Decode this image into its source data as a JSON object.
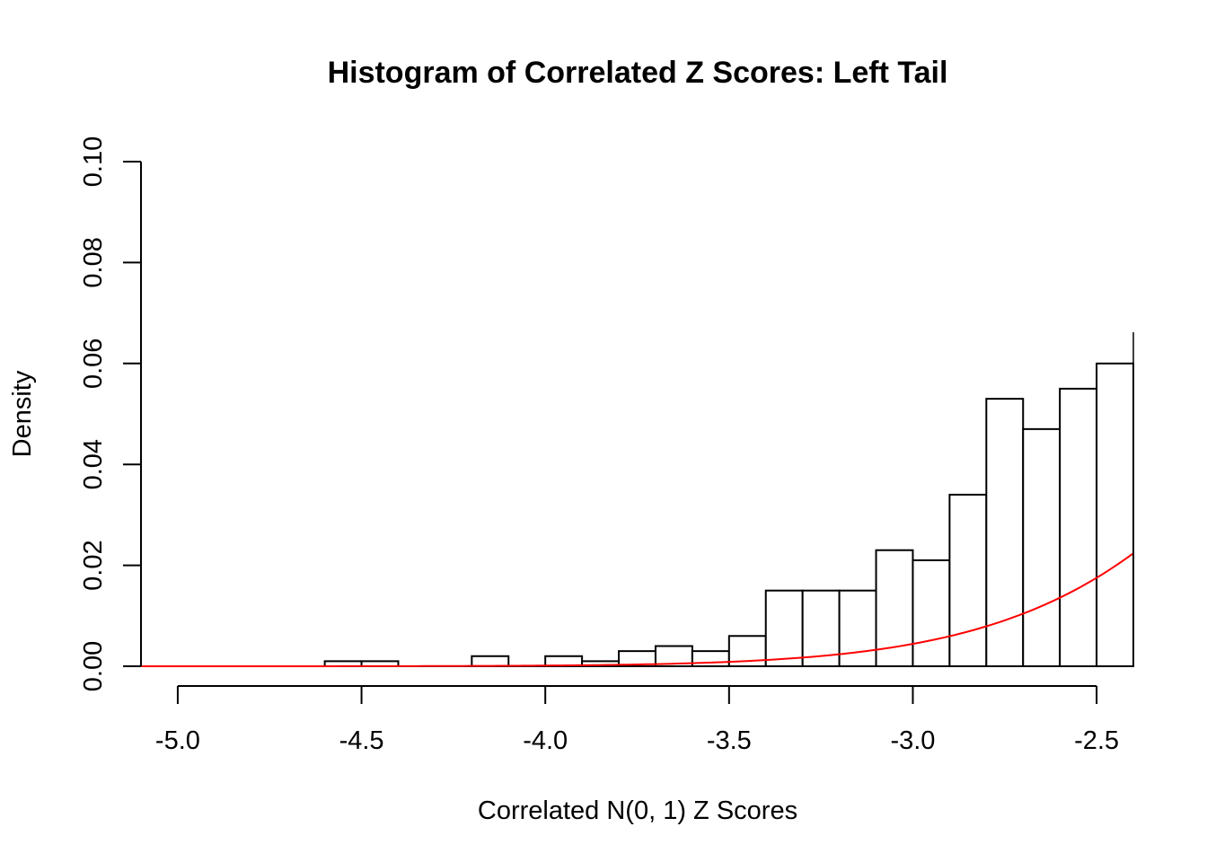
{
  "chart_data": {
    "type": "bar",
    "title": "Histogram of Correlated Z Scores: Left Tail",
    "xlabel": "Correlated N(0, 1) Z Scores",
    "ylabel": "Density",
    "xlim": [
      -5.1,
      -2.4
    ],
    "ylim": [
      0,
      0.1
    ],
    "x_ticks": [
      -5.0,
      -4.5,
      -4.0,
      -3.5,
      -3.0,
      -2.5
    ],
    "x_tick_labels": [
      "-5.0",
      "-4.5",
      "-4.0",
      "-3.5",
      "-3.0",
      "-2.5"
    ],
    "y_ticks": [
      0.0,
      0.02,
      0.04,
      0.06,
      0.08,
      0.1
    ],
    "y_tick_labels": [
      "0.00",
      "0.02",
      "0.04",
      "0.06",
      "0.08",
      "0.10"
    ],
    "bar_color": "#ffffff",
    "bar_edge_color": "#000000",
    "curve_color": "#ff0000",
    "grid": false,
    "bins": [
      {
        "x0": -4.6,
        "x1": -4.5,
        "density": 0.001
      },
      {
        "x0": -4.5,
        "x1": -4.4,
        "density": 0.001
      },
      {
        "x0": -4.2,
        "x1": -4.1,
        "density": 0.002
      },
      {
        "x0": -4.0,
        "x1": -3.9,
        "density": 0.002
      },
      {
        "x0": -3.9,
        "x1": -3.8,
        "density": 0.001
      },
      {
        "x0": -3.8,
        "x1": -3.7,
        "density": 0.003
      },
      {
        "x0": -3.7,
        "x1": -3.6,
        "density": 0.004
      },
      {
        "x0": -3.6,
        "x1": -3.5,
        "density": 0.003
      },
      {
        "x0": -3.5,
        "x1": -3.4,
        "density": 0.006
      },
      {
        "x0": -3.4,
        "x1": -3.3,
        "density": 0.015
      },
      {
        "x0": -3.3,
        "x1": -3.2,
        "density": 0.015
      },
      {
        "x0": -3.2,
        "x1": -3.1,
        "density": 0.015
      },
      {
        "x0": -3.1,
        "x1": -3.0,
        "density": 0.023
      },
      {
        "x0": -3.0,
        "x1": -2.9,
        "density": 0.021
      },
      {
        "x0": -2.9,
        "x1": -2.8,
        "density": 0.034
      },
      {
        "x0": -2.8,
        "x1": -2.7,
        "density": 0.053
      },
      {
        "x0": -2.7,
        "x1": -2.6,
        "density": 0.047
      },
      {
        "x0": -2.6,
        "x1": -2.5,
        "density": 0.055
      },
      {
        "x0": -2.5,
        "x1": -2.4,
        "density": 0.06
      }
    ],
    "curve": {
      "function": "standard normal density",
      "x_range": [
        -5.1,
        -2.4
      ]
    }
  }
}
